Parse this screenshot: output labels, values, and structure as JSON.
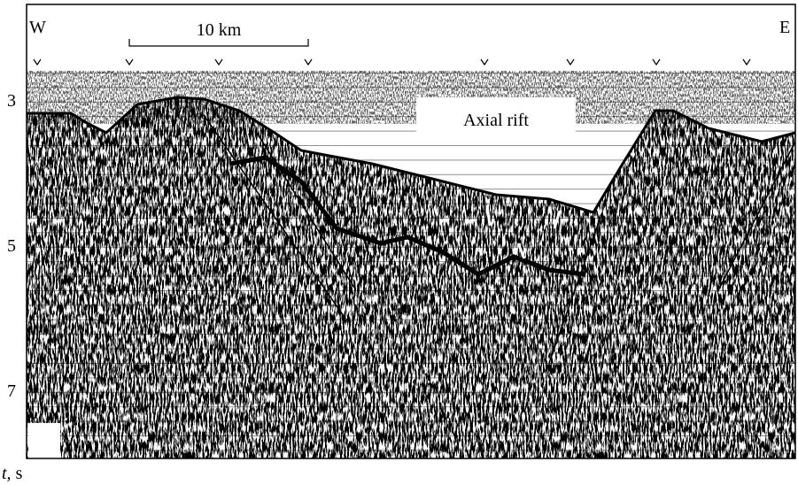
{
  "figure": {
    "left_label": "W",
    "right_label": "E",
    "scale_bar": "10 km",
    "annotation": "Axial rift",
    "axis_ticks": [
      "3",
      "5",
      "7"
    ],
    "axis_label": "t, s"
  }
}
